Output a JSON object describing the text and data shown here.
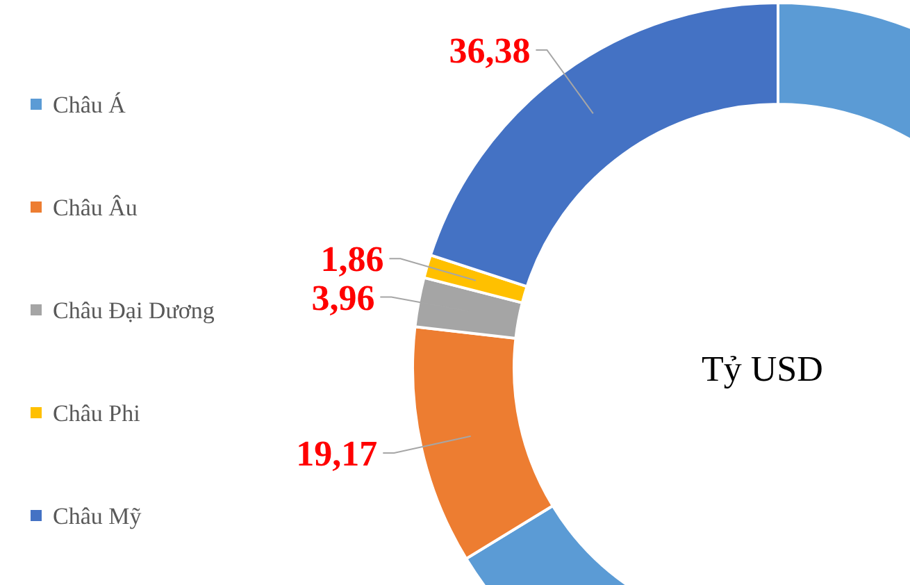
{
  "chart_data": {
    "type": "donut",
    "categories": [
      "Châu Á",
      "Châu Âu",
      "Châu Đại Dương",
      "Châu Phi",
      "Châu Mỹ"
    ],
    "values": [
      120.6,
      19.17,
      3.96,
      1.86,
      36.38
    ],
    "colors": [
      "#5b9bd5",
      "#ed7d31",
      "#a5a5a5",
      "#ffc000",
      "#4472c4"
    ],
    "value_labels": [
      null,
      "19,17",
      "3,96",
      "1,86",
      "36,38"
    ],
    "annotations": [
      "Tỷ USD"
    ],
    "legend": "left"
  }
}
